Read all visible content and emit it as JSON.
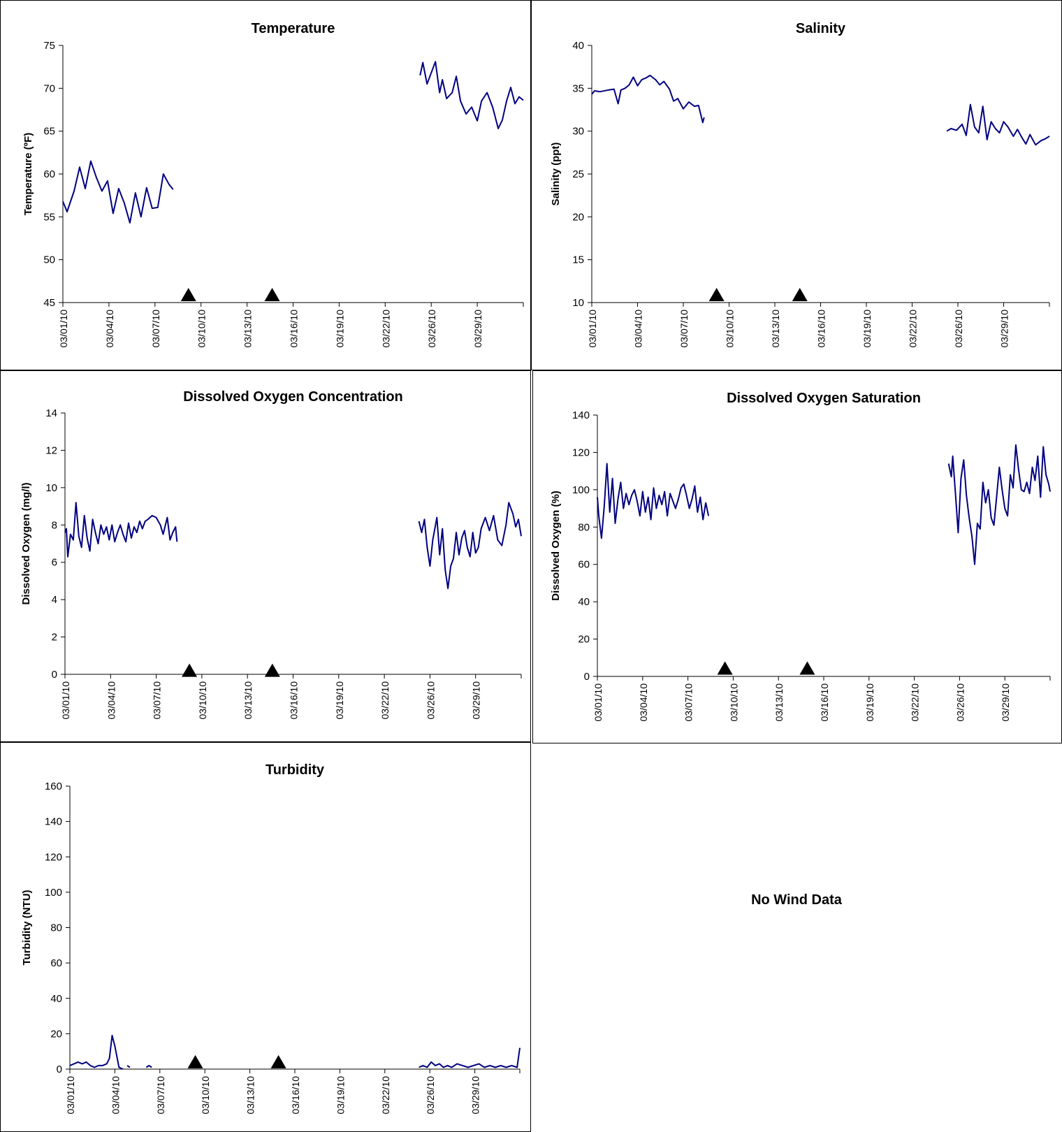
{
  "colors": {
    "series": "#000080",
    "marker": "#000000",
    "axis": "#000000"
  },
  "x_tick_labels": [
    "03/01/10",
    "03/04/10",
    "03/07/10",
    "03/10/10",
    "03/13/10",
    "03/16/10",
    "03/19/10",
    "03/22/10",
    "03/26/10",
    "03/29/10"
  ],
  "no_wind_text": "No Wind Data",
  "chart_data": [
    {
      "type": "line",
      "title": "Temperature",
      "ylabel": "Temperature (ºF)",
      "ylim": [
        45,
        75
      ],
      "yticks": [
        45,
        50,
        55,
        60,
        65,
        70,
        75
      ],
      "x_unit": "days since 03/01/10",
      "markers_x": [
        9,
        15
      ],
      "markers_y": 45.9,
      "series": [
        {
          "x": [
            0,
            0.3,
            0.8,
            1.2,
            1.6,
            2.0,
            2.4,
            2.8,
            3.2,
            3.6,
            4.0,
            4.4,
            4.8,
            5.2,
            5.6,
            6.0,
            6.4,
            6.8,
            7.2,
            7.6,
            7.9
          ],
          "y": [
            56.8,
            55.6,
            58.0,
            60.8,
            58.3,
            61.5,
            59.6,
            58.0,
            59.2,
            55.4,
            58.3,
            56.6,
            54.3,
            57.8,
            55.0,
            58.4,
            56.0,
            56.1,
            60.0,
            58.8,
            58.2
          ]
        },
        {
          "x": [
            25.6,
            25.8,
            26.1,
            26.4,
            26.7,
            27.0,
            27.2,
            27.5,
            27.9,
            28.2,
            28.5,
            28.9,
            29.3,
            29.7,
            30.0,
            30.4,
            30.8,
            31.2,
            31.5,
            31.8,
            32.1,
            32.4,
            32.7,
            33.0
          ],
          "y": [
            71.5,
            73.0,
            70.5,
            71.8,
            73.1,
            69.5,
            71.0,
            68.8,
            69.5,
            71.4,
            68.5,
            67.0,
            67.8,
            66.2,
            68.5,
            69.5,
            67.8,
            65.3,
            66.3,
            68.5,
            70.1,
            68.2,
            69.0,
            68.6
          ]
        }
      ]
    },
    {
      "type": "line",
      "title": "Salinity",
      "ylabel": "Salinity (ppt)",
      "ylim": [
        10,
        40
      ],
      "yticks": [
        10,
        15,
        20,
        25,
        30,
        35,
        40
      ],
      "x_unit": "days since 03/01/10",
      "markers_x": [
        9,
        15
      ],
      "markers_y": 10.9,
      "series": [
        {
          "x": [
            0,
            0.2,
            0.6,
            1.2,
            1.6,
            1.9,
            2.1,
            2.4,
            2.7,
            3.0,
            3.3,
            3.6,
            3.9,
            4.2,
            4.6,
            4.9,
            5.2,
            5.6,
            5.9,
            6.2,
            6.6,
            7.0,
            7.4,
            7.7,
            8.0,
            8.1
          ],
          "y": [
            34.3,
            34.7,
            34.6,
            34.8,
            34.9,
            33.2,
            34.8,
            35.0,
            35.4,
            36.3,
            35.3,
            36.0,
            36.2,
            36.5,
            36.0,
            35.4,
            35.8,
            34.9,
            33.5,
            33.8,
            32.6,
            33.4,
            32.9,
            33.0,
            31.0,
            31.6
          ]
        },
        {
          "x": [
            25.6,
            25.9,
            26.3,
            26.7,
            27.0,
            27.3,
            27.6,
            27.9,
            28.2,
            28.5,
            28.8,
            29.1,
            29.4,
            29.7,
            30.0,
            30.4,
            30.7,
            31.0,
            31.3,
            31.6,
            32.0,
            32.4,
            32.7,
            33.0
          ],
          "y": [
            30.0,
            30.3,
            30.1,
            30.8,
            29.5,
            33.1,
            30.5,
            29.8,
            32.9,
            29.0,
            31.1,
            30.3,
            29.8,
            31.1,
            30.5,
            29.4,
            30.2,
            29.3,
            28.5,
            29.6,
            28.4,
            28.9,
            29.1,
            29.4
          ]
        }
      ]
    },
    {
      "type": "line",
      "title": "Dissolved Oxygen Concentration",
      "ylabel": "Dissolved Oxygen (mg/l)",
      "ylim": [
        0,
        14
      ],
      "yticks": [
        0,
        2,
        4,
        6,
        8,
        10,
        12,
        14
      ],
      "x_unit": "days since 03/01/10",
      "markers_x": [
        9,
        15
      ],
      "markers_y": 0.2,
      "series": [
        {
          "x": [
            0,
            0.1,
            0.2,
            0.4,
            0.6,
            0.8,
            1.0,
            1.2,
            1.4,
            1.6,
            1.8,
            2.0,
            2.2,
            2.4,
            2.6,
            2.8,
            3.0,
            3.2,
            3.4,
            3.6,
            3.8,
            4.0,
            4.2,
            4.4,
            4.6,
            4.8,
            5.0,
            5.2,
            5.4,
            5.6,
            5.8,
            6.0,
            6.3,
            6.6,
            6.9,
            7.1,
            7.4,
            7.6,
            7.8,
            8.0,
            8.1
          ],
          "y": [
            7.6,
            7.8,
            6.3,
            7.5,
            7.2,
            9.2,
            7.4,
            6.8,
            8.5,
            7.3,
            6.6,
            8.3,
            7.6,
            7.0,
            8.0,
            7.5,
            7.9,
            7.2,
            8.0,
            7.1,
            7.6,
            8.0,
            7.5,
            7.1,
            8.1,
            7.3,
            7.9,
            7.6,
            8.2,
            7.8,
            8.2,
            8.3,
            8.5,
            8.4,
            8.0,
            7.5,
            8.4,
            7.2,
            7.6,
            7.9,
            7.1
          ]
        },
        {
          "x": [
            25.6,
            25.8,
            26.0,
            26.2,
            26.4,
            26.6,
            26.9,
            27.1,
            27.3,
            27.5,
            27.7,
            27.9,
            28.1,
            28.3,
            28.5,
            28.7,
            28.9,
            29.1,
            29.3,
            29.5,
            29.7,
            29.9,
            30.1,
            30.4,
            30.7,
            31.0,
            31.3,
            31.6,
            31.9,
            32.1,
            32.4,
            32.6,
            32.8,
            33.0
          ],
          "y": [
            8.2,
            7.6,
            8.3,
            6.8,
            5.8,
            7.2,
            8.4,
            6.4,
            7.8,
            5.6,
            4.6,
            5.8,
            6.2,
            7.6,
            6.4,
            7.3,
            7.7,
            6.8,
            6.3,
            7.6,
            6.5,
            6.8,
            7.8,
            8.4,
            7.7,
            8.5,
            7.2,
            6.9,
            8.0,
            9.2,
            8.6,
            7.9,
            8.3,
            7.4
          ]
        }
      ]
    },
    {
      "type": "line",
      "title": "Dissolved Oxygen Saturation",
      "ylabel": "Dissolved Oxygen (%)",
      "ylim": [
        0,
        140
      ],
      "yticks": [
        0,
        20,
        40,
        60,
        80,
        100,
        120,
        140
      ],
      "x_unit": "days since 03/01/10",
      "markers_x": [
        9.3,
        15.3
      ],
      "markers_y": 4.3,
      "series": [
        {
          "x": [
            0,
            0.1,
            0.3,
            0.5,
            0.7,
            0.9,
            1.1,
            1.3,
            1.5,
            1.7,
            1.9,
            2.1,
            2.3,
            2.5,
            2.7,
            2.9,
            3.1,
            3.3,
            3.5,
            3.7,
            3.9,
            4.1,
            4.3,
            4.5,
            4.7,
            4.9,
            5.1,
            5.3,
            5.5,
            5.7,
            5.9,
            6.1,
            6.3,
            6.5,
            6.7,
            6.9,
            7.1,
            7.3,
            7.5,
            7.7,
            7.9,
            8.1
          ],
          "y": [
            96,
            86,
            74,
            91,
            114,
            88,
            106,
            82,
            95,
            104,
            90,
            98,
            92,
            97,
            100,
            94,
            86,
            99,
            88,
            96,
            84,
            101,
            90,
            97,
            92,
            99,
            86,
            98,
            94,
            90,
            95,
            101,
            103,
            97,
            90,
            95,
            102,
            88,
            96,
            84,
            93,
            86
          ]
        },
        {
          "x": [
            25.6,
            25.8,
            25.9,
            26.1,
            26.3,
            26.5,
            26.7,
            26.9,
            27.1,
            27.3,
            27.5,
            27.7,
            27.9,
            28.1,
            28.3,
            28.5,
            28.7,
            28.9,
            29.1,
            29.3,
            29.5,
            29.7,
            29.9,
            30.1,
            30.3,
            30.5,
            30.7,
            30.9,
            31.1,
            31.3,
            31.5,
            31.7,
            31.9,
            32.1,
            32.3,
            32.5,
            32.7,
            32.9,
            33.0
          ],
          "y": [
            114,
            107,
            118,
            98,
            77,
            106,
            116,
            97,
            85,
            75,
            60,
            82,
            79,
            104,
            93,
            100,
            85,
            81,
            96,
            112,
            100,
            90,
            86,
            108,
            101,
            124,
            111,
            100,
            99,
            104,
            98,
            112,
            105,
            118,
            96,
            123,
            108,
            103,
            99
          ]
        }
      ]
    },
    {
      "type": "line",
      "title": "Turbidity",
      "ylabel": "Turbidity (NTU)",
      "ylim": [
        0,
        160
      ],
      "yticks": [
        0,
        20,
        40,
        60,
        80,
        100,
        120,
        140,
        160
      ],
      "x_unit": "days since 03/01/10",
      "markers_x": [
        9.2,
        15.3
      ],
      "markers_y": 4.0,
      "series": [
        {
          "x": [
            0,
            0.3,
            0.6,
            0.9,
            1.2,
            1.5,
            1.8,
            2.1,
            2.4,
            2.7,
            2.9,
            3.1,
            3.3,
            3.6,
            3.9
          ],
          "y": [
            2,
            3,
            4,
            3,
            4,
            2,
            1,
            2,
            2,
            3,
            6,
            19,
            13,
            1,
            0
          ]
        },
        {
          "x": [
            4.2,
            4.4
          ],
          "y": [
            2,
            1
          ]
        },
        {
          "x": [
            5.6,
            5.8,
            6.0
          ],
          "y": [
            1,
            2,
            1
          ]
        },
        {
          "x": [
            25.6,
            25.9,
            26.2,
            26.5,
            26.8,
            27.1,
            27.4,
            27.7,
            28.0,
            28.4,
            28.8,
            29.2,
            29.6,
            30.0,
            30.4,
            30.8,
            31.2,
            31.6,
            32.0,
            32.4,
            32.8,
            33.0
          ],
          "y": [
            1,
            2,
            1,
            4,
            2,
            3,
            1,
            2,
            1,
            3,
            2,
            1,
            2,
            3,
            1,
            2,
            1,
            2,
            1,
            2,
            1,
            12
          ]
        }
      ]
    }
  ]
}
